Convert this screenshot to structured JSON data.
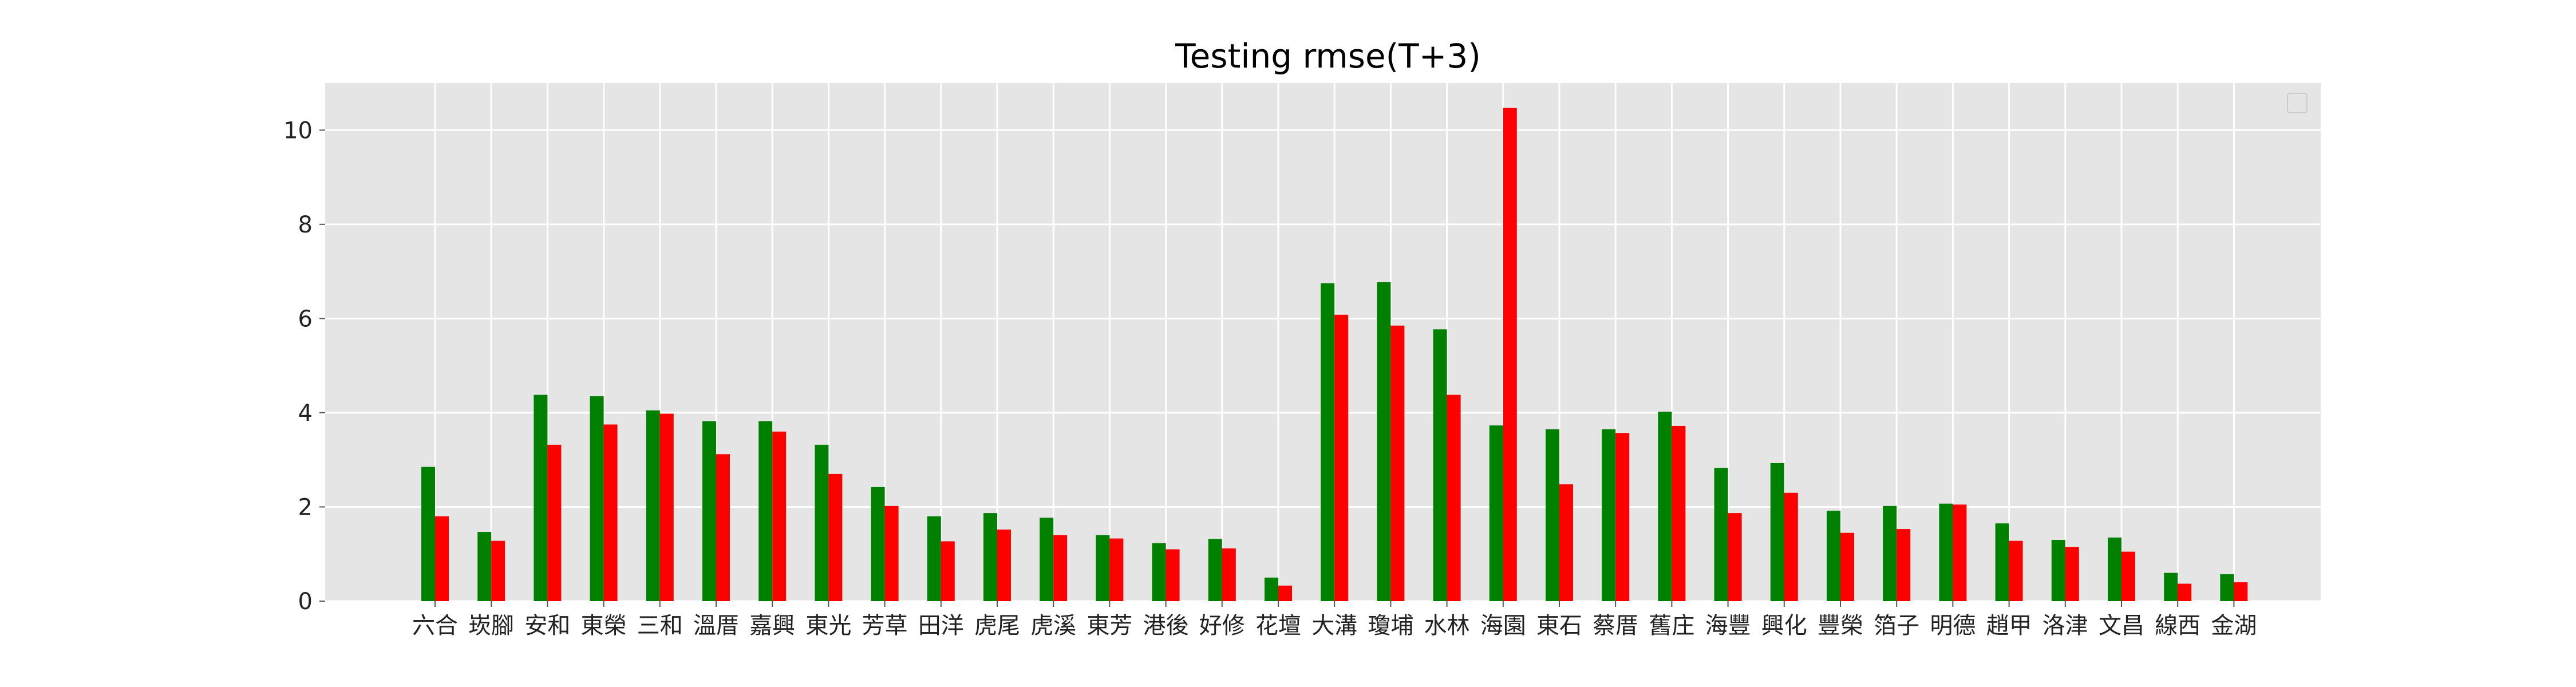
{
  "chart_data": {
    "type": "bar",
    "title": "Testing rmse(T+3)",
    "xlabel": "",
    "ylabel": "",
    "ylim": [
      0,
      11
    ],
    "yticks": [
      0,
      2,
      4,
      6,
      8,
      10
    ],
    "grid": true,
    "legend": "top-right (empty)",
    "style": {
      "plot_background": "#e5e5e5",
      "grid_color": "#ffffff",
      "series_colors": [
        "#008000",
        "#ff0000"
      ]
    },
    "categories": [
      "六合",
      "崁腳",
      "安和",
      "東榮",
      "三和",
      "溫厝",
      "嘉興",
      "東光",
      "芳草",
      "田洋",
      "虎尾",
      "虎溪",
      "東芳",
      "港後",
      "好修",
      "花壇",
      "大溝",
      "瓊埔",
      "水林",
      "海園",
      "東石",
      "蔡厝",
      "舊庄",
      "海豐",
      "興化",
      "豐榮",
      "箔子",
      "明德",
      "趙甲",
      "洛津",
      "文昌",
      "線西",
      "金湖"
    ],
    "series": [
      {
        "values": [
          2.85,
          1.47,
          4.38,
          4.35,
          4.05,
          3.82,
          3.82,
          3.32,
          2.42,
          1.8,
          1.87,
          1.77,
          1.4,
          1.23,
          1.32,
          0.5,
          6.75,
          6.77,
          5.77,
          3.73,
          3.65,
          3.65,
          4.02,
          2.83,
          2.93,
          1.92,
          2.02,
          2.07,
          1.65,
          1.3,
          1.35,
          0.6,
          0.57
        ]
      },
      {
        "values": [
          1.8,
          1.28,
          3.32,
          3.75,
          3.98,
          3.12,
          3.6,
          2.7,
          2.02,
          1.27,
          1.52,
          1.4,
          1.33,
          1.1,
          1.12,
          0.33,
          6.08,
          5.85,
          4.38,
          10.47,
          2.48,
          3.57,
          3.72,
          1.87,
          2.3,
          1.45,
          1.53,
          2.05,
          1.28,
          1.15,
          1.05,
          0.37,
          0.4
        ]
      }
    ]
  }
}
